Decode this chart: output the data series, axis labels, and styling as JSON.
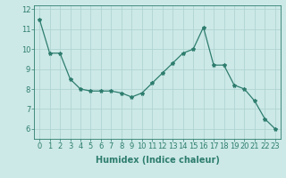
{
  "x": [
    0,
    1,
    2,
    3,
    4,
    5,
    6,
    7,
    8,
    9,
    10,
    11,
    12,
    13,
    14,
    15,
    16,
    17,
    18,
    19,
    20,
    21,
    22,
    23
  ],
  "y": [
    11.5,
    9.8,
    9.8,
    8.5,
    8.0,
    7.9,
    7.9,
    7.9,
    7.8,
    7.6,
    7.8,
    8.3,
    8.8,
    9.3,
    9.8,
    10.0,
    11.1,
    9.2,
    9.2,
    8.2,
    8.0,
    7.4,
    6.5,
    6.0
  ],
  "line_color": "#2e7d6e",
  "marker": "*",
  "marker_size": 3,
  "bg_color": "#cce9e7",
  "grid_color": "#b0d4d2",
  "xlabel": "Humidex (Indice chaleur)",
  "xlabel_fontsize": 7,
  "tick_fontsize": 6,
  "ylim": [
    5.5,
    12.2
  ],
  "xlim": [
    -0.5,
    23.5
  ],
  "yticks": [
    6,
    7,
    8,
    9,
    10,
    11,
    12
  ],
  "xticks": [
    0,
    1,
    2,
    3,
    4,
    5,
    6,
    7,
    8,
    9,
    10,
    11,
    12,
    13,
    14,
    15,
    16,
    17,
    18,
    19,
    20,
    21,
    22,
    23
  ]
}
